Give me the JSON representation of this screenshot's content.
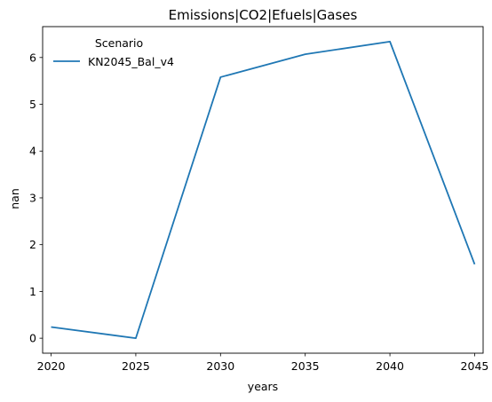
{
  "chart_data": {
    "type": "line",
    "title": "Emissions|CO2|Efuels|Gases",
    "xlabel": "years",
    "ylabel": "nan",
    "x": [
      2020,
      2025,
      2030,
      2035,
      2040,
      2045
    ],
    "xlim": [
      2019.5,
      2045.5
    ],
    "ylim": [
      -0.32,
      6.66
    ],
    "xticks": [
      2020,
      2025,
      2030,
      2035,
      2040,
      2045
    ],
    "yticks": [
      0,
      1,
      2,
      3,
      4,
      5,
      6
    ],
    "grid": false,
    "legend": {
      "title": "Scenario",
      "placement": "top-left",
      "entries": [
        "KN2045_Bal_v4"
      ]
    },
    "series": [
      {
        "name": "KN2045_Bal_v4",
        "color": "#1f77b4",
        "values": [
          0.24,
          0.0,
          5.58,
          6.07,
          6.34,
          1.58
        ]
      }
    ]
  }
}
